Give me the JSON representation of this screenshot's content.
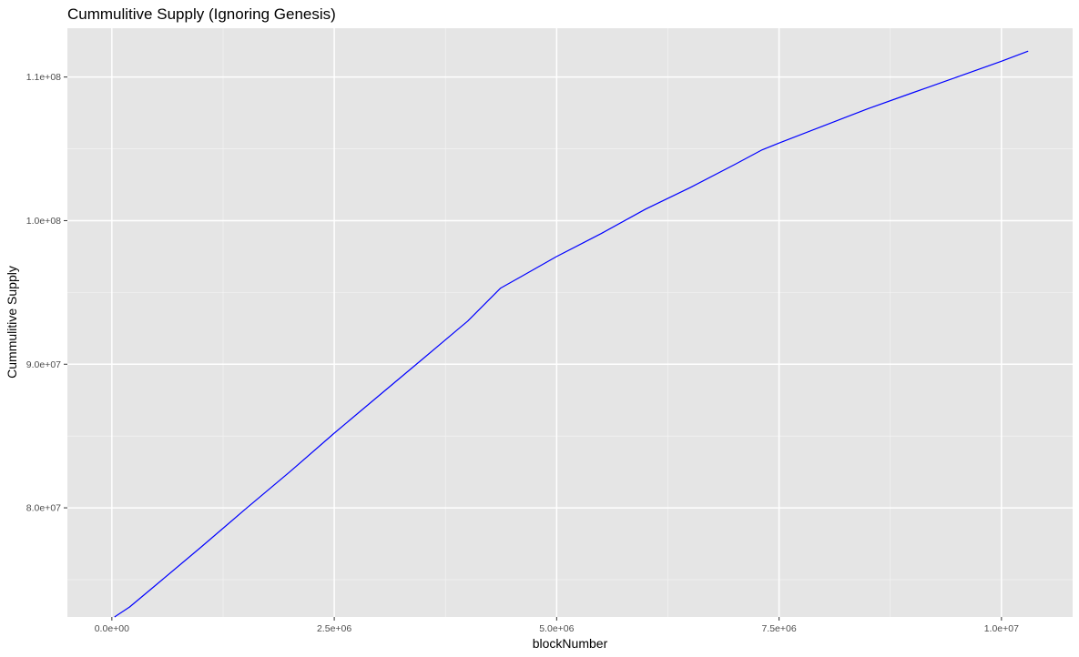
{
  "colors": {
    "panel_background": "#e5e5e5",
    "grid_major": "#ffffff",
    "grid_minor": "#f2f2f2",
    "line": "#0000ff",
    "tick_mark": "#333333",
    "tick_text": "#4d4d4d"
  },
  "chart_data": {
    "type": "line",
    "title": "Cummulitive Supply (Ignoring Genesis)",
    "xlabel": "blockNumber",
    "ylabel": "Cummulitive Supply",
    "xlim": [
      -500000,
      10800000
    ],
    "ylim": [
      72400000,
      113400000
    ],
    "grid": true,
    "legend": "none",
    "x_ticks": [
      {
        "value": 0,
        "label": "0.0e+00"
      },
      {
        "value": 2500000,
        "label": "2.5e+06"
      },
      {
        "value": 5000000,
        "label": "5.0e+06"
      },
      {
        "value": 7500000,
        "label": "7.5e+06"
      },
      {
        "value": 10000000,
        "label": "1.0e+07"
      }
    ],
    "y_ticks": [
      {
        "value": 80000000,
        "label": "8.0e+07"
      },
      {
        "value": 90000000,
        "label": "9.0e+07"
      },
      {
        "value": 100000000,
        "label": "1.0e+08"
      },
      {
        "value": 110000000,
        "label": "1.1e+08"
      }
    ],
    "x_minor": [
      1250000,
      3750000,
      6250000,
      8750000
    ],
    "y_minor": [
      75000000,
      85000000,
      95000000,
      105000000
    ],
    "series": [
      {
        "color": "#0000ff",
        "x": [
          30000,
          200000,
          500000,
          1000000,
          1500000,
          2000000,
          2500000,
          3000000,
          3500000,
          4000000,
          4370000,
          4600000,
          5000000,
          5500000,
          6000000,
          6500000,
          7000000,
          7300000,
          7500000,
          8000000,
          8500000,
          9000000,
          9500000,
          10000000,
          10300000
        ],
        "y": [
          72400000,
          73100000,
          74650000,
          77250000,
          79900000,
          82500000,
          85200000,
          87800000,
          90400000,
          93000000,
          95300000,
          96100000,
          97500000,
          99100000,
          100800000,
          102300000,
          103900000,
          104900000,
          105400000,
          106600000,
          107800000,
          108900000,
          110000000,
          111100000,
          111800000
        ]
      }
    ]
  }
}
